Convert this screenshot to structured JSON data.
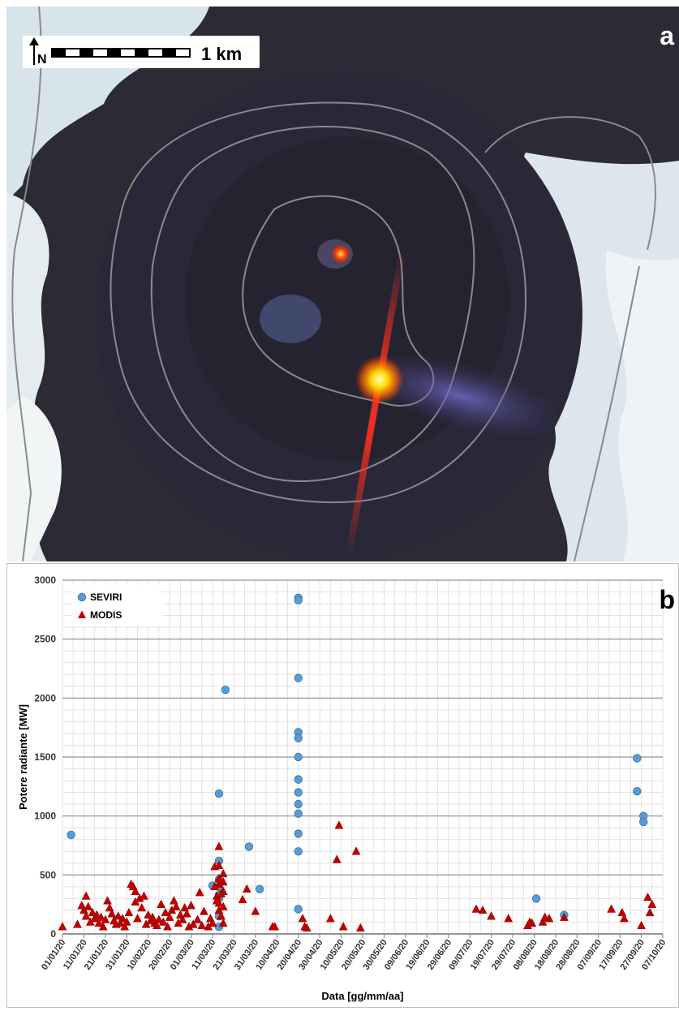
{
  "panel_a": {
    "letter": "a",
    "scale_label": "1 km",
    "north_label": "N"
  },
  "panel_b": {
    "letter": "b"
  },
  "chart_data": {
    "type": "scatter",
    "title": "",
    "xlabel": "Data [gg/mm/aa]",
    "ylabel": "Potere radiante [MW]",
    "ylim": [
      0,
      3000
    ],
    "yticks": [
      0,
      500,
      1000,
      1500,
      2000,
      2500,
      3000
    ],
    "x_start": "01/01/20",
    "x_end": "07/10/20",
    "xtick_labels": [
      "01/01/20",
      "11/01/20",
      "21/01/20",
      "31/01/20",
      "10/02/20",
      "20/02/20",
      "01/03/20",
      "11/03/20",
      "21/03/20",
      "31/03/20",
      "10/04/20",
      "20/04/20",
      "30/04/20",
      "10/05/20",
      "20/05/20",
      "30/05/20",
      "09/06/20",
      "19/06/20",
      "29/06/20",
      "09/07/20",
      "19/07/20",
      "29/07/20",
      "08/08/20",
      "18/08/20",
      "28/08/20",
      "07/09/20",
      "17/09/20",
      "27/09/20",
      "07/10/20"
    ],
    "grid": true,
    "legend": "top-left",
    "series": [
      {
        "name": "SEVIRI",
        "color": "#5b9bd5",
        "marker": "circle",
        "points": [
          [
            "05/01/20",
            840
          ],
          [
            "11/03/20",
            410
          ],
          [
            "14/03/20",
            1190
          ],
          [
            "14/03/20",
            620
          ],
          [
            "14/03/20",
            460
          ],
          [
            "14/03/20",
            400
          ],
          [
            "14/03/20",
            330
          ],
          [
            "14/03/20",
            300
          ],
          [
            "14/03/20",
            150
          ],
          [
            "14/03/20",
            60
          ],
          [
            "17/03/20",
            2070
          ],
          [
            "28/03/20",
            740
          ],
          [
            "02/04/20",
            380
          ],
          [
            "20/04/20",
            2850
          ],
          [
            "20/04/20",
            2830
          ],
          [
            "20/04/20",
            2170
          ],
          [
            "20/04/20",
            1710
          ],
          [
            "20/04/20",
            1660
          ],
          [
            "20/04/20",
            1500
          ],
          [
            "20/04/20",
            1310
          ],
          [
            "20/04/20",
            1200
          ],
          [
            "20/04/20",
            1100
          ],
          [
            "20/04/20",
            1020
          ],
          [
            "20/04/20",
            850
          ],
          [
            "20/04/20",
            700
          ],
          [
            "20/04/20",
            210
          ],
          [
            "09/08/20",
            300
          ],
          [
            "22/08/20",
            160
          ],
          [
            "25/09/20",
            1490
          ],
          [
            "25/09/20",
            1210
          ],
          [
            "28/09/20",
            1000
          ],
          [
            "28/09/20",
            950
          ]
        ]
      },
      {
        "name": "MODIS",
        "color": "#c00000",
        "marker": "triangle",
        "points": [
          [
            "01/01/20",
            60
          ],
          [
            "08/01/20",
            80
          ],
          [
            "10/01/20",
            240
          ],
          [
            "11/01/20",
            200
          ],
          [
            "12/01/20",
            320
          ],
          [
            "12/01/20",
            150
          ],
          [
            "13/01/20",
            230
          ],
          [
            "14/01/20",
            100
          ],
          [
            "15/01/20",
            180
          ],
          [
            "16/01/20",
            130
          ],
          [
            "17/01/20",
            160
          ],
          [
            "18/01/20",
            90
          ],
          [
            "19/01/20",
            140
          ],
          [
            "20/01/20",
            60
          ],
          [
            "21/01/20",
            120
          ],
          [
            "22/01/20",
            280
          ],
          [
            "23/01/20",
            220
          ],
          [
            "24/01/20",
            170
          ],
          [
            "25/01/20",
            110
          ],
          [
            "26/01/20",
            80
          ],
          [
            "27/01/20",
            150
          ],
          [
            "28/01/20",
            90
          ],
          [
            "29/01/20",
            130
          ],
          [
            "30/01/20",
            60
          ],
          [
            "31/01/20",
            100
          ],
          [
            "01/02/20",
            180
          ],
          [
            "02/02/20",
            420
          ],
          [
            "03/02/20",
            400
          ],
          [
            "04/02/20",
            360
          ],
          [
            "04/02/20",
            270
          ],
          [
            "05/02/20",
            130
          ],
          [
            "06/02/20",
            300
          ],
          [
            "07/02/20",
            220
          ],
          [
            "08/02/20",
            320
          ],
          [
            "09/02/20",
            80
          ],
          [
            "10/02/20",
            160
          ],
          [
            "11/02/20",
            110
          ],
          [
            "12/02/20",
            140
          ],
          [
            "13/02/20",
            90
          ],
          [
            "14/02/20",
            70
          ],
          [
            "15/02/20",
            120
          ],
          [
            "16/02/20",
            250
          ],
          [
            "17/02/20",
            100
          ],
          [
            "18/02/20",
            180
          ],
          [
            "19/02/20",
            60
          ],
          [
            "20/02/20",
            140
          ],
          [
            "21/02/20",
            200
          ],
          [
            "22/02/20",
            280
          ],
          [
            "23/02/20",
            230
          ],
          [
            "24/02/20",
            90
          ],
          [
            "25/02/20",
            160
          ],
          [
            "26/02/20",
            120
          ],
          [
            "27/02/20",
            220
          ],
          [
            "28/02/20",
            170
          ],
          [
            "29/02/20",
            60
          ],
          [
            "01/03/20",
            240
          ],
          [
            "02/03/20",
            80
          ],
          [
            "04/03/20",
            120
          ],
          [
            "05/03/20",
            350
          ],
          [
            "06/03/20",
            70
          ],
          [
            "07/03/20",
            190
          ],
          [
            "09/03/20",
            60
          ],
          [
            "10/03/20",
            130
          ],
          [
            "11/03/20",
            90
          ],
          [
            "12/03/20",
            570
          ],
          [
            "12/03/20",
            400
          ],
          [
            "13/03/20",
            280
          ],
          [
            "13/03/20",
            320
          ],
          [
            "14/03/20",
            740
          ],
          [
            "14/03/20",
            580
          ],
          [
            "14/03/20",
            470
          ],
          [
            "14/03/20",
            420
          ],
          [
            "14/03/20",
            260
          ],
          [
            "14/03/20",
            200
          ],
          [
            "15/03/20",
            340
          ],
          [
            "15/03/20",
            150
          ],
          [
            "16/03/20",
            510
          ],
          [
            "16/03/20",
            440
          ],
          [
            "16/03/20",
            360
          ],
          [
            "16/03/20",
            230
          ],
          [
            "16/03/20",
            90
          ],
          [
            "25/03/20",
            290
          ],
          [
            "27/03/20",
            380
          ],
          [
            "31/03/20",
            190
          ],
          [
            "08/04/20",
            60
          ],
          [
            "09/04/20",
            60
          ],
          [
            "22/04/20",
            130
          ],
          [
            "23/04/20",
            60
          ],
          [
            "24/04/20",
            50
          ],
          [
            "05/05/20",
            130
          ],
          [
            "08/05/20",
            630
          ],
          [
            "09/05/20",
            920
          ],
          [
            "11/05/20",
            60
          ],
          [
            "17/05/20",
            700
          ],
          [
            "19/05/20",
            50
          ],
          [
            "12/07/20",
            210
          ],
          [
            "15/07/20",
            200
          ],
          [
            "19/07/20",
            150
          ],
          [
            "27/07/20",
            130
          ],
          [
            "05/08/20",
            70
          ],
          [
            "06/08/20",
            100
          ],
          [
            "07/08/20",
            90
          ],
          [
            "12/08/20",
            100
          ],
          [
            "13/08/20",
            140
          ],
          [
            "15/08/20",
            130
          ],
          [
            "22/08/20",
            140
          ],
          [
            "13/09/20",
            210
          ],
          [
            "18/09/20",
            180
          ],
          [
            "19/09/20",
            130
          ],
          [
            "27/09/20",
            70
          ],
          [
            "30/09/20",
            310
          ],
          [
            "01/10/20",
            180
          ],
          [
            "02/10/20",
            250
          ]
        ]
      }
    ]
  }
}
